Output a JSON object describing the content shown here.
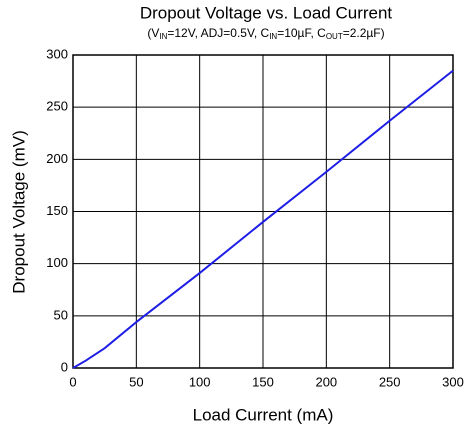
{
  "chart_data": {
    "type": "line",
    "title": "Dropout Voltage vs. Load Current",
    "subtitle": [
      "(V",
      "IN",
      "=12V, ADJ=0.5V, C",
      "IN",
      "=10µF, C",
      "OUT",
      "=2.2µF)"
    ],
    "x_label": "Load Current (mA)",
    "y_label": "Dropout Voltage (mV)",
    "x": [
      0,
      10,
      25,
      50,
      100,
      150,
      200,
      250,
      300
    ],
    "series": [
      {
        "color": "#1e1ee6",
        "values": [
          0,
          7,
          19,
          44,
          91,
          140,
          188,
          237,
          285
        ]
      }
    ],
    "xlim": [
      0,
      300
    ],
    "ylim": [
      0,
      300
    ],
    "xticks": [
      0,
      50,
      100,
      150,
      200,
      250,
      300
    ],
    "yticks": [
      0,
      50,
      100,
      150,
      200,
      250,
      300
    ],
    "grid": true
  }
}
